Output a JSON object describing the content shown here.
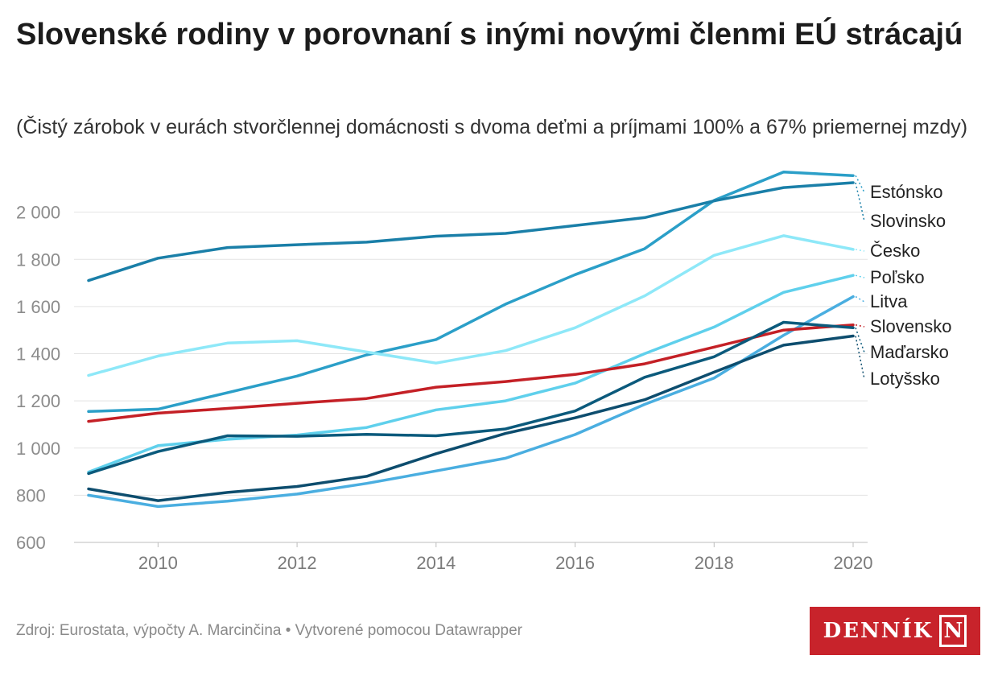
{
  "title": "Slovenské rodiny v porovnaní s inými novými členmi EÚ strácajú",
  "subtitle": "(Čistý zárobok v eurách stvorčlennej domácnosti s dvoma deťmi a príjmami 100% a 67% priemernej mzdy)",
  "footer": {
    "source": "Zdroj: Eurostata, výpočty A. Marcinčina • Vytvorené pomocou Datawrapper",
    "logo_text": "DENNÍK",
    "logo_mark": "N"
  },
  "chart_data": {
    "type": "line",
    "x": [
      2009,
      2010,
      2011,
      2012,
      2013,
      2014,
      2015,
      2016,
      2017,
      2018,
      2019,
      2020
    ],
    "ylim": [
      600,
      2200
    ],
    "yticks": [
      600,
      800,
      1000,
      1200,
      1400,
      1600,
      1800,
      2000
    ],
    "ytick_labels": [
      "600",
      "800",
      "1 000",
      "1 200",
      "1 400",
      "1 600",
      "1 800",
      "2 000"
    ],
    "xticks": [
      2010,
      2012,
      2014,
      2016,
      2018,
      2020
    ],
    "xtick_labels": [
      "2010",
      "2012",
      "2014",
      "2016",
      "2018",
      "2020"
    ],
    "grid": true,
    "legend": "direct labels at right end",
    "series": [
      {
        "name": "Estónsko",
        "color": "#2b9fc8",
        "values": [
          1155,
          1165,
          1235,
          1305,
          1395,
          1460,
          1610,
          1735,
          1845,
          2050,
          2170,
          2155
        ]
      },
      {
        "name": "Slovinsko",
        "color": "#1a7fa8",
        "values": [
          1710,
          1805,
          1850,
          1862,
          1873,
          1898,
          1910,
          1943,
          1977,
          2048,
          2104,
          2125
        ]
      },
      {
        "name": "Česko",
        "color": "#8ee8f8",
        "values": [
          1308,
          1390,
          1445,
          1455,
          1407,
          1360,
          1413,
          1510,
          1645,
          1817,
          1900,
          1842
        ]
      },
      {
        "name": "Poľsko",
        "color": "#5fd0ec",
        "values": [
          898,
          1010,
          1037,
          1055,
          1087,
          1162,
          1200,
          1275,
          1400,
          1513,
          1660,
          1732
        ]
      },
      {
        "name": "Litva",
        "color": "#4aaee0",
        "values": [
          800,
          752,
          775,
          805,
          850,
          903,
          957,
          1057,
          1185,
          1297,
          1478,
          1642
        ]
      },
      {
        "name": "Slovensko",
        "color": "#c42026",
        "values": [
          1113,
          1148,
          1168,
          1190,
          1210,
          1258,
          1282,
          1312,
          1357,
          1428,
          1500,
          1522
        ]
      },
      {
        "name": "Maďarsko",
        "color": "#0b5a7c",
        "values": [
          892,
          985,
          1052,
          1050,
          1058,
          1052,
          1081,
          1157,
          1300,
          1387,
          1533,
          1510
        ]
      },
      {
        "name": "Lotyšsko",
        "color": "#0d4d6e",
        "values": [
          827,
          777,
          812,
          837,
          880,
          976,
          1062,
          1128,
          1205,
          1322,
          1436,
          1475
        ]
      }
    ]
  }
}
